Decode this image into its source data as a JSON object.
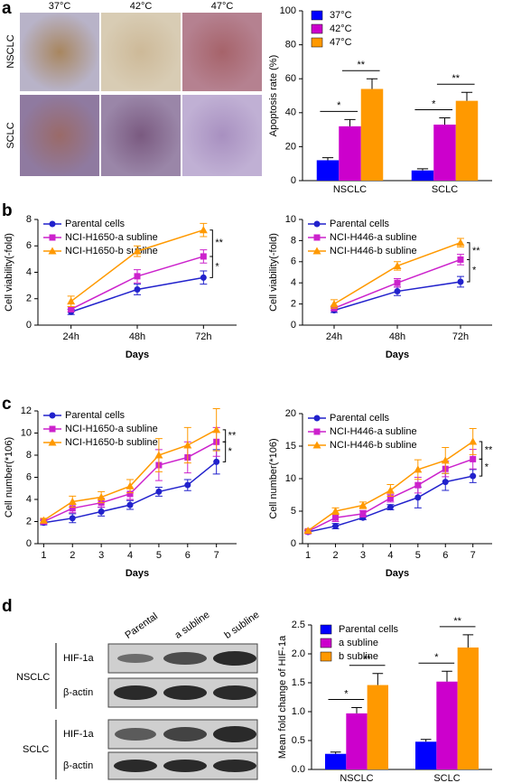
{
  "panel_labels": [
    "a",
    "b",
    "c",
    "d"
  ],
  "micrographs": {
    "columns": [
      "37°C",
      "42°C",
      "47°C"
    ],
    "rows": [
      "NSCLC",
      "SCLC"
    ]
  },
  "blot": {
    "lanes": [
      "Parental",
      "a subline",
      "b subline"
    ],
    "groups": [
      {
        "name": "NSCLC",
        "bands": [
          "HIF-1a",
          "β-actin"
        ]
      },
      {
        "name": "SCLC",
        "bands": [
          "HIF-1a",
          "β-actin"
        ]
      }
    ]
  },
  "chart_data": [
    {
      "type": "bar",
      "y_label": "Apoptosis rate (%)",
      "categories": [
        "NSCLC",
        "SCLC"
      ],
      "series": [
        {
          "name": "37°C",
          "color": "#0000ff",
          "values": [
            12,
            6
          ],
          "errors": [
            1.5,
            1
          ]
        },
        {
          "name": "42°C",
          "color": "#cc00cc",
          "values": [
            32,
            33
          ],
          "errors": [
            4,
            4
          ]
        },
        {
          "name": "47°C",
          "color": "#ff9900",
          "values": [
            54,
            47
          ],
          "errors": [
            6,
            5
          ]
        }
      ],
      "ylim": [
        0,
        100
      ],
      "yticks": [
        0,
        20,
        40,
        60,
        80,
        100
      ],
      "legend": "upper left",
      "significance": [
        [
          "*",
          "**"
        ],
        [
          "*",
          "**"
        ]
      ]
    },
    {
      "type": "line",
      "y_label": "Cell viability(-fold)",
      "x_label": "Days",
      "categories": [
        "24h",
        "48h",
        "72h"
      ],
      "series": [
        {
          "name": "Parental cells",
          "color": "#2222cc",
          "marker": "circle",
          "values": [
            1.0,
            2.7,
            3.6
          ],
          "errors": [
            0.2,
            0.4,
            0.5
          ]
        },
        {
          "name": "NCI-H1650-a subline",
          "color": "#cc22cc",
          "marker": "square",
          "values": [
            1.2,
            3.7,
            5.2
          ],
          "errors": [
            0.2,
            0.5,
            0.5
          ]
        },
        {
          "name": "NCI-H1650-b subline",
          "color": "#ff9900",
          "marker": "triangle",
          "values": [
            1.8,
            5.6,
            7.2
          ],
          "errors": [
            0.4,
            0.4,
            0.5
          ]
        }
      ],
      "ylim": [
        0,
        8
      ],
      "yticks": [
        0,
        2,
        4,
        6,
        8
      ],
      "legend": "upper left",
      "significance": [
        "**",
        "*"
      ]
    },
    {
      "type": "line",
      "y_label": "Cell viability(-fold)",
      "x_label": "Days",
      "categories": [
        "24h",
        "48h",
        "72h"
      ],
      "series": [
        {
          "name": "Parental cells",
          "color": "#2222cc",
          "marker": "circle",
          "values": [
            1.4,
            3.2,
            4.1
          ],
          "errors": [
            0.2,
            0.4,
            0.5
          ]
        },
        {
          "name": "NCI-H446-a subline",
          "color": "#cc22cc",
          "marker": "square",
          "values": [
            1.6,
            4.0,
            6.2
          ],
          "errors": [
            0.2,
            0.4,
            0.5
          ]
        },
        {
          "name": "NCI-H446-b subline",
          "color": "#ff9900",
          "marker": "triangle",
          "values": [
            2.0,
            5.6,
            7.8
          ],
          "errors": [
            0.4,
            0.4,
            0.4
          ]
        }
      ],
      "ylim": [
        0,
        10
      ],
      "yticks": [
        0,
        2,
        4,
        6,
        8,
        10
      ],
      "legend": "upper left",
      "significance": [
        "**",
        "*"
      ]
    },
    {
      "type": "line",
      "y_label": "Cell number(*106)",
      "x_label": "Days",
      "x": [
        1,
        2,
        3,
        4,
        5,
        6,
        7
      ],
      "xlim": [
        0.8,
        7.7
      ],
      "xticks": [
        1,
        2,
        3,
        4,
        5,
        6,
        7
      ],
      "series": [
        {
          "name": "Parental cells",
          "color": "#2222cc",
          "marker": "circle",
          "values": [
            1.9,
            2.3,
            2.9,
            3.5,
            4.7,
            5.3,
            7.4
          ],
          "errors": [
            0.2,
            0.4,
            0.4,
            0.4,
            0.4,
            0.5,
            1.1
          ]
        },
        {
          "name": "NCI-H1650-a subline",
          "color": "#cc22cc",
          "marker": "square",
          "values": [
            2.0,
            3.2,
            3.7,
            4.5,
            7.1,
            7.8,
            9.2
          ],
          "errors": [
            0.2,
            0.4,
            0.4,
            0.5,
            1.4,
            1.4,
            1.3
          ]
        },
        {
          "name": "NCI-H1650-b subline",
          "color": "#ff9900",
          "marker": "triangle",
          "values": [
            2.1,
            3.8,
            4.2,
            5.2,
            8.0,
            8.9,
            10.3
          ],
          "errors": [
            0.2,
            0.5,
            0.5,
            0.6,
            1.5,
            1.6,
            1.9
          ]
        }
      ],
      "ylim": [
        0,
        12
      ],
      "yticks": [
        0,
        2,
        4,
        6,
        8,
        10,
        12
      ],
      "legend": "upper left",
      "significance": [
        "**",
        "*"
      ]
    },
    {
      "type": "line",
      "y_label": "Cell number(*106)",
      "x_label": "Days",
      "x": [
        1,
        2,
        3,
        4,
        5,
        6,
        7
      ],
      "xlim": [
        0.8,
        7.7
      ],
      "xticks": [
        1,
        2,
        3,
        4,
        5,
        6,
        7
      ],
      "series": [
        {
          "name": "Parental cells",
          "color": "#2222cc",
          "marker": "circle",
          "values": [
            1.8,
            2.7,
            4.0,
            5.6,
            7.1,
            9.5,
            10.4
          ],
          "errors": [
            0.2,
            0.4,
            0.3,
            0.4,
            1.6,
            1.3,
            1.0
          ]
        },
        {
          "name": "NCI-H446-a subline",
          "color": "#cc22cc",
          "marker": "square",
          "values": [
            1.9,
            4.0,
            4.6,
            7.0,
            9.0,
            11.5,
            13.0
          ],
          "errors": [
            0.2,
            0.6,
            0.5,
            0.6,
            1.2,
            1.2,
            1.5
          ]
        },
        {
          "name": "NCI-H446-b subline",
          "color": "#ff9900",
          "marker": "triangle",
          "values": [
            2.0,
            5.0,
            5.9,
            8.2,
            11.4,
            12.8,
            15.7
          ],
          "errors": [
            0.2,
            0.5,
            0.5,
            0.9,
            1.5,
            2.0,
            2.0
          ]
        }
      ],
      "ylim": [
        0,
        20
      ],
      "yticks": [
        0,
        5,
        10,
        15,
        20
      ],
      "legend": "upper left",
      "significance": [
        "**",
        "*"
      ]
    },
    {
      "type": "bar",
      "y_label": "Mean fold change of HIF-1a",
      "categories": [
        "NSCLC",
        "SCLC"
      ],
      "series": [
        {
          "name": "Parental cells",
          "color": "#0000ff",
          "values": [
            0.27,
            0.48
          ],
          "errors": [
            0.03,
            0.04
          ]
        },
        {
          "name": "a subline",
          "color": "#cc00cc",
          "values": [
            0.97,
            1.52
          ],
          "errors": [
            0.1,
            0.18
          ]
        },
        {
          "name": "b subline",
          "color": "#ff9900",
          "values": [
            1.46,
            2.11
          ],
          "errors": [
            0.2,
            0.22
          ]
        }
      ],
      "ylim": [
        0,
        2.5
      ],
      "yticks": [
        {
          "value": 0,
          "label": "0.0"
        },
        0.5,
        {
          "value": 1,
          "label": "1.0"
        },
        1.5,
        {
          "value": 2,
          "label": "2.0"
        },
        2.5
      ],
      "legend": "upper left",
      "significance": [
        [
          "*",
          "**"
        ],
        [
          "*",
          "**"
        ]
      ]
    }
  ]
}
